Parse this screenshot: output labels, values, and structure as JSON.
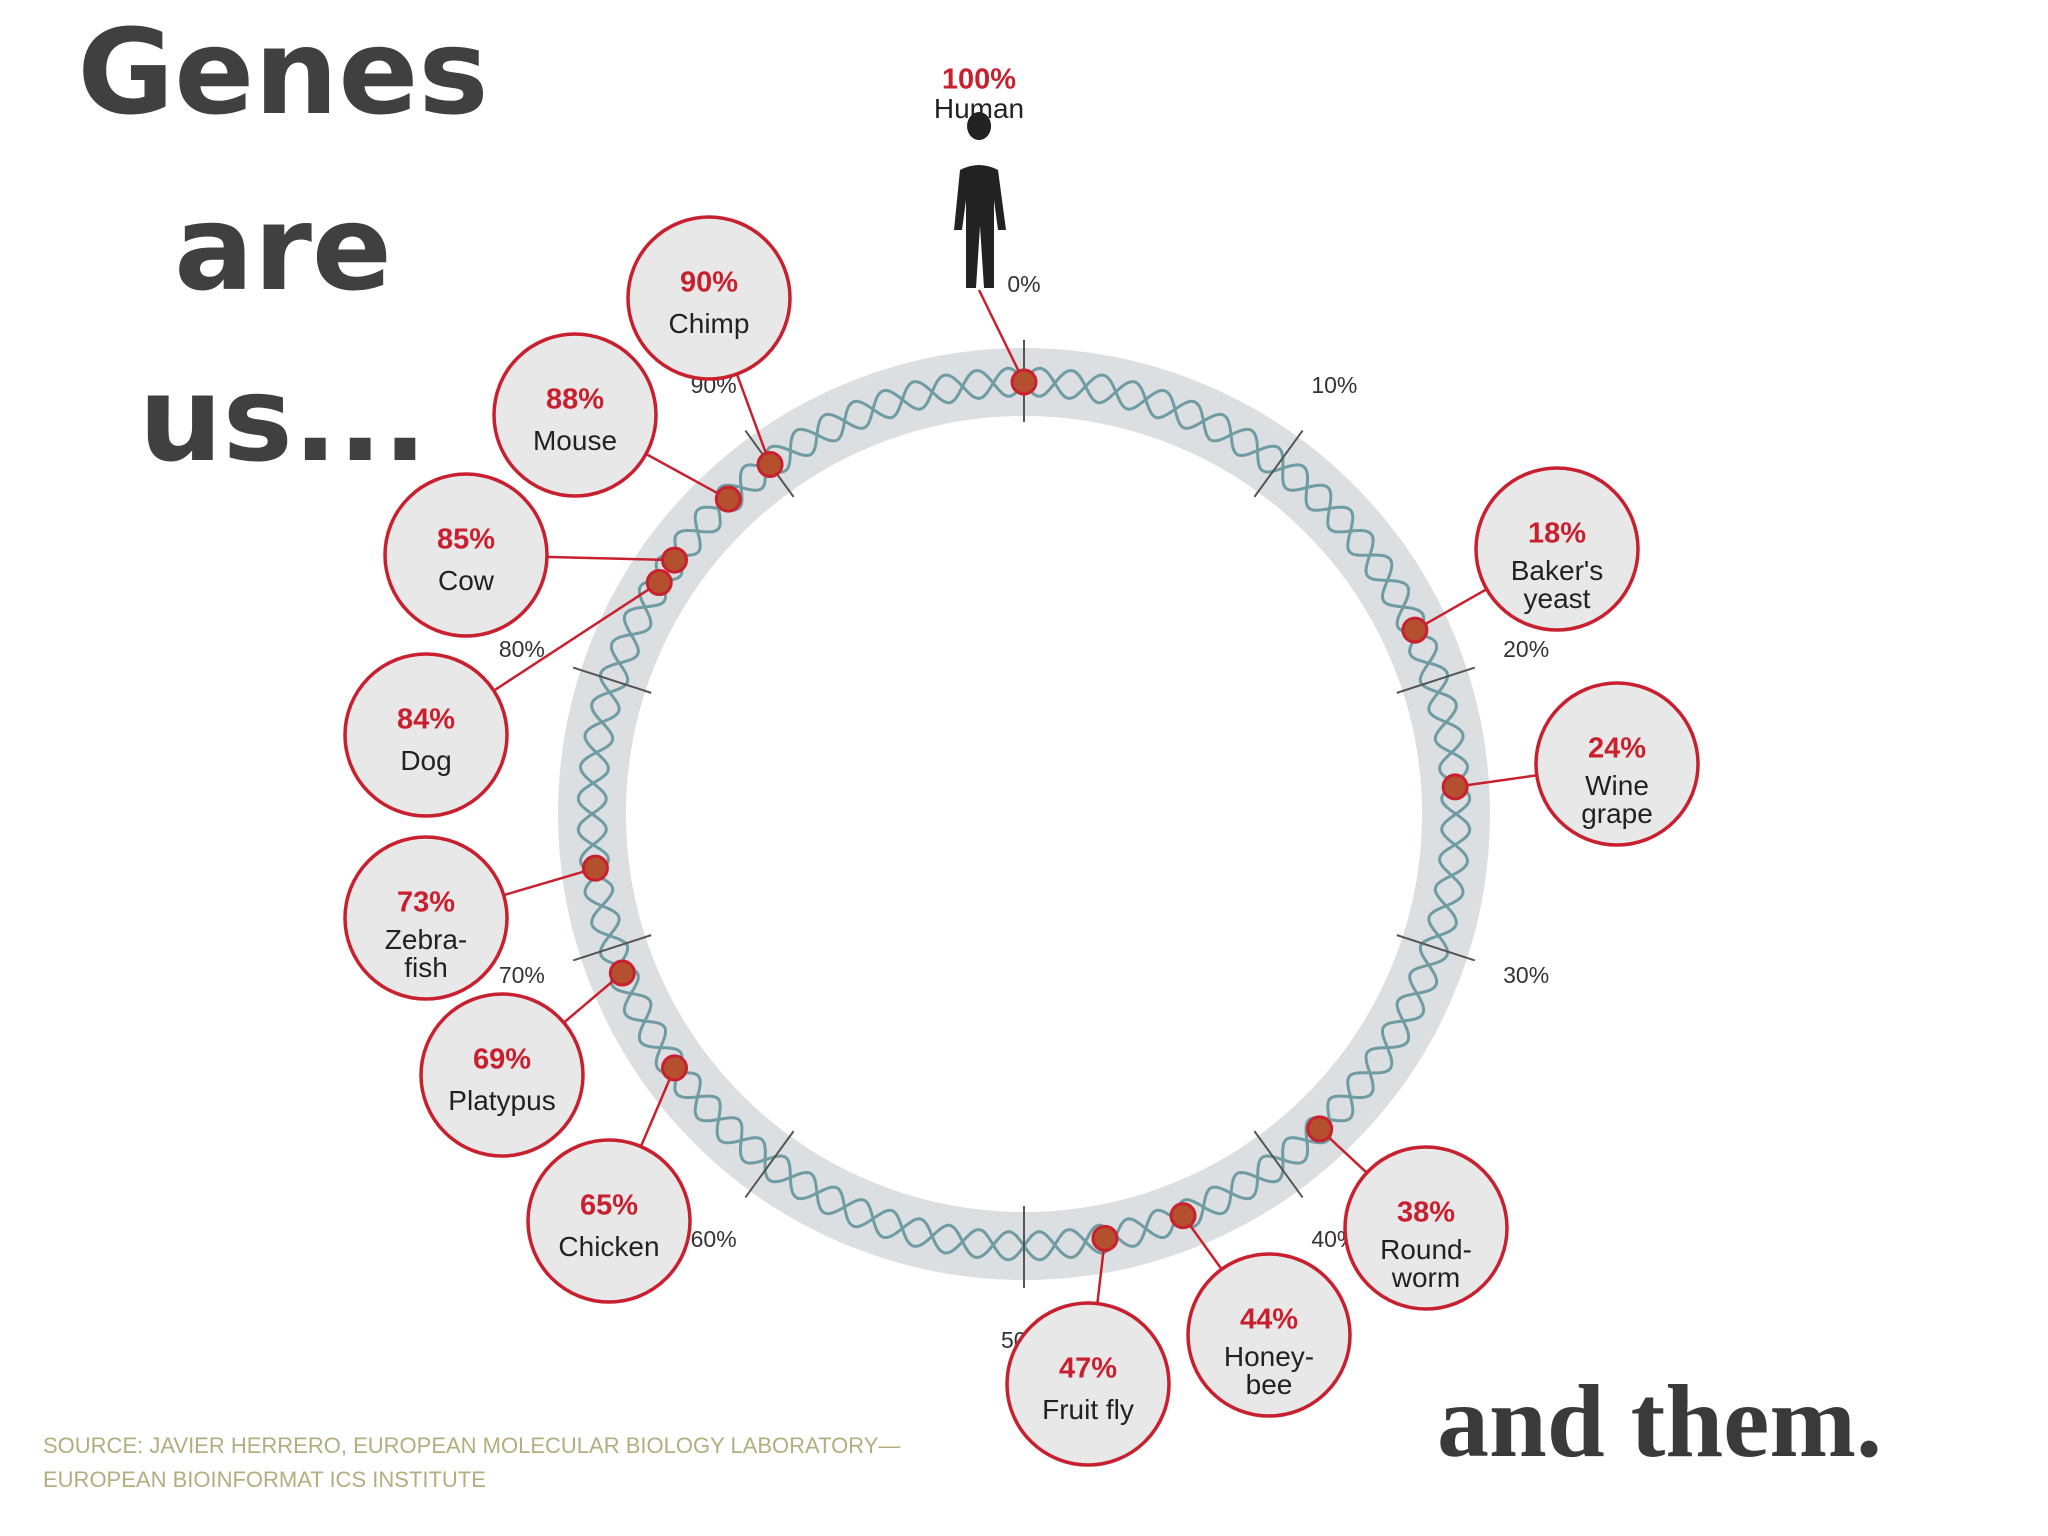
{
  "slide": {
    "title_lines": [
      "Genes",
      "are",
      "us..."
    ],
    "closing": "and them.",
    "source_lines": [
      "SOURCE: JAVIER HERRERO, EUROPEAN MOLECULAR BIOLOGY LABORATORY—",
      "EUROPEAN BIOINFORMAT ICS INSTITUTE"
    ]
  },
  "chart_data": {
    "type": "radial",
    "categories": [
      "Baker's\nyeast",
      "Wine\ngrape",
      "Round-\nworm",
      "Honey-\nbee",
      "Fruit fly",
      "Chicken",
      "Platypus",
      "Zebra-\nfish",
      "Dog",
      "Cow",
      "Mouse",
      "Chimp",
      "Human"
    ],
    "values": [
      18,
      24,
      38,
      44,
      47,
      65,
      69,
      73,
      84,
      85,
      88,
      90,
      100
    ],
    "value_labels": [
      "18%",
      "24%",
      "38%",
      "44%",
      "47%",
      "65%",
      "69%",
      "73%",
      "84%",
      "85%",
      "88%",
      "90%",
      "100%"
    ],
    "lim": [
      0,
      100
    ],
    "ticks": [
      {
        "value": 0,
        "label": "0%"
      },
      {
        "value": 10,
        "label": "10%"
      },
      {
        "value": 20,
        "label": "20%"
      },
      {
        "value": 30,
        "label": "30%"
      },
      {
        "value": 40,
        "label": "40%"
      },
      {
        "value": 50,
        "label": "50%"
      },
      {
        "value": 60,
        "label": "60%"
      },
      {
        "value": 70,
        "label": "70%"
      },
      {
        "value": 80,
        "label": "80%"
      },
      {
        "value": 90,
        "label": "90%"
      }
    ],
    "color": "#c8202f",
    "ring_color": "#dcdfe1",
    "helix_color": "#6f9ca3"
  }
}
